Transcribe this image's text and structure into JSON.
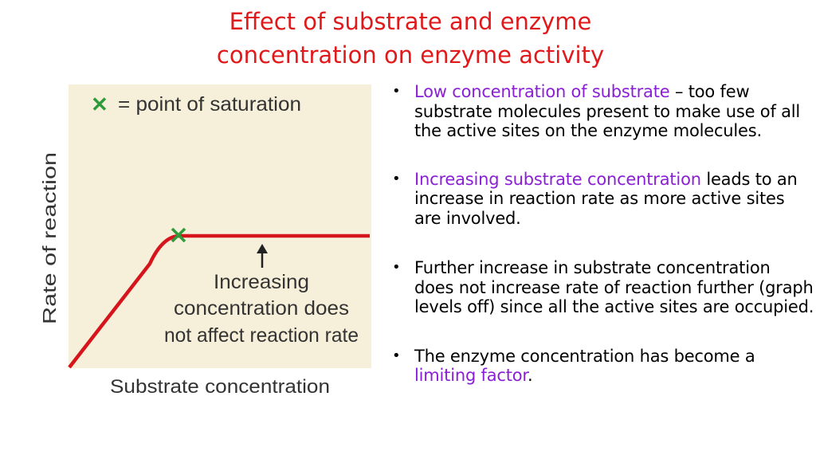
{
  "title": {
    "line1": "Effect of substrate and enzyme",
    "line2": "concentration on enzyme activity"
  },
  "colors": {
    "title": "#e0191b",
    "highlight": "#8a1fd6",
    "plot_background": "#f6efd9",
    "curve": "#d6141c",
    "marker": "#2e9b3a"
  },
  "figure": {
    "legend_symbol": "✕",
    "legend_text": "= point of saturation",
    "ylabel": "Rate of reaction",
    "xlabel": "Substrate concentration",
    "annotation_line1": "Increasing",
    "annotation_line2": "concentration does",
    "annotation_line3": "not affect reaction rate"
  },
  "bullets": [
    {
      "bullet": "•",
      "highlight": "Low concentration of substrate",
      "text": " – too few substrate molecules present to make use of all the active sites on the enzyme molecules."
    },
    {
      "bullet": "•",
      "highlight": "Increasing substrate concentration",
      "text": " leads to an increase in reaction rate as more active sites are involved."
    },
    {
      "bullet": "•",
      "text": "Further increase in substrate concentration does not increase rate of reaction further (graph levels off) since all the active sites are occupied."
    },
    {
      "bullet": "•",
      "text": "The enzyme concentration has become a ",
      "highlight": "limiting factor",
      "tail": "."
    }
  ]
}
